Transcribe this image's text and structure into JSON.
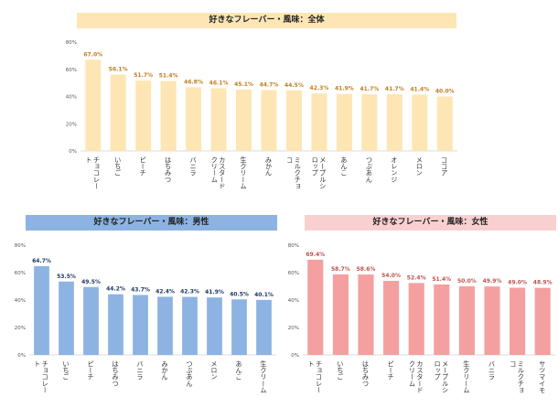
{
  "chart_data": [
    {
      "type": "bar",
      "title": "好きなフレーバー・風味：全体",
      "categories": [
        "チョコレート",
        "いちご",
        "ピーチ",
        "はちみつ",
        "バニラ",
        "カスタードクリーム",
        "生クリーム",
        "みかん",
        "ミルクチョコ",
        "メープルシロップ",
        "あんこ",
        "つぶあん",
        "オレンジ",
        "メロン",
        "ココア"
      ],
      "values": [
        67.0,
        56.1,
        51.7,
        51.4,
        46.8,
        46.1,
        45.1,
        44.7,
        44.5,
        42.3,
        41.9,
        41.7,
        41.7,
        41.4,
        40.0
      ],
      "value_labels": [
        "67.0%",
        "56.1%",
        "51.7%",
        "51.4%",
        "46.8%",
        "46.1%",
        "45.1%",
        "44.7%",
        "44.5%",
        "42.3%",
        "41.9%",
        "41.7%",
        "41.7%",
        "41.4%",
        "40.0%"
      ],
      "ylim": [
        0,
        80
      ],
      "yticks": [
        "0%",
        "20%",
        "40%",
        "60%",
        "80%"
      ],
      "colors": {
        "bar": "#fde6b4",
        "label": "#c07d1c",
        "title_bg": "#fde6b4"
      },
      "grid": false
    },
    {
      "type": "bar",
      "title": "好きなフレーバー・風味：男性",
      "categories": [
        "チョコレート",
        "いちご",
        "ピーチ",
        "はちみつ",
        "バニラ",
        "みかん",
        "つぶあん",
        "メロン",
        "あんこ",
        "生クリーム"
      ],
      "values": [
        64.7,
        53.5,
        49.5,
        44.2,
        43.7,
        42.4,
        42.3,
        41.9,
        40.5,
        40.1
      ],
      "value_labels": [
        "64.7%",
        "53.5%",
        "49.5%",
        "44.2%",
        "43.7%",
        "42.4%",
        "42.3%",
        "41.9%",
        "40.5%",
        "40.1%"
      ],
      "ylim": [
        0,
        80
      ],
      "yticks": [
        "0%",
        "20%",
        "40%",
        "60%",
        "80%"
      ],
      "colors": {
        "bar": "#8db3e2",
        "label": "#1f3864",
        "title_bg": "#8db3e2"
      },
      "grid": false
    },
    {
      "type": "bar",
      "title": "好きなフレーバー・風味：女性",
      "categories": [
        "チョコレート",
        "いちご",
        "はちみつ",
        "ピーチ",
        "カスタードクリーム",
        "メープルシロップ",
        "生クリーム",
        "バニラ",
        "ミルクチョコ",
        "サツマイモ"
      ],
      "values": [
        69.4,
        58.7,
        58.6,
        54.0,
        52.4,
        51.4,
        50.0,
        49.9,
        49.0,
        48.9
      ],
      "value_labels": [
        "69.4%",
        "58.7%",
        "58.6%",
        "54.0%",
        "52.4%",
        "51.4%",
        "50.0%",
        "49.9%",
        "49.0%",
        "48.9%"
      ],
      "ylim": [
        0,
        80
      ],
      "yticks": [
        "0%",
        "20%",
        "40%",
        "60%",
        "80%"
      ],
      "colors": {
        "bar": "#f4a0a0",
        "label": "#c0504d",
        "title_bg": "#f9d0d0"
      },
      "grid": false
    }
  ]
}
